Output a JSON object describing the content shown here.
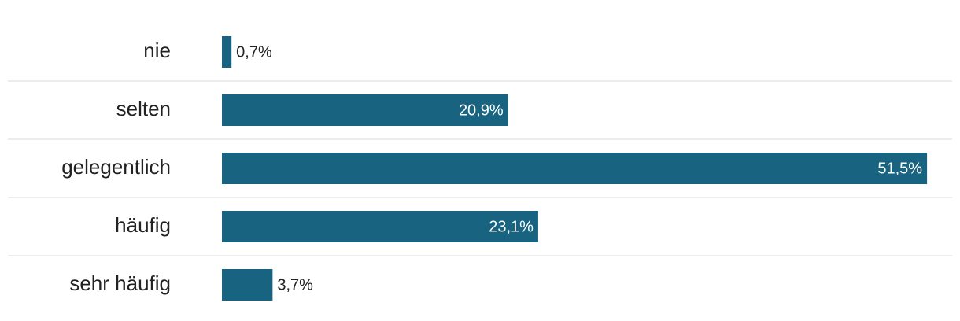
{
  "chart_data": {
    "type": "bar",
    "orientation": "horizontal",
    "categories": [
      "nie",
      "selten",
      "gelegentlich",
      "häufig",
      "sehr häufig"
    ],
    "values": [
      0.7,
      20.9,
      51.5,
      23.1,
      3.7
    ],
    "value_labels": [
      "0,7%",
      "20,9%",
      "51,5%",
      "23,1%",
      "3,7%"
    ],
    "color": "#176380"
  }
}
